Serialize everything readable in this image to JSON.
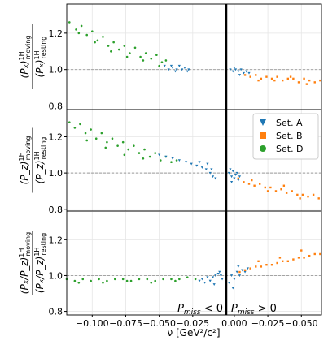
{
  "chart_data": {
    "type": "scatter",
    "sets": [
      {
        "name": "Set. A",
        "color": "#1f77b4",
        "marker": "triangle"
      },
      {
        "name": "Set. B",
        "color": "#ff7f0e",
        "marker": "square"
      },
      {
        "name": "Set. D",
        "color": "#2ca02c",
        "marker": "circle"
      }
    ],
    "legend": "upper right",
    "grid": true,
    "xlabel": "ν [GeV²/c²]",
    "xlim_left": [
      -0.119,
      0.0
    ],
    "xlim_right": [
      0.006,
      -0.065
    ],
    "xticks_left": [
      {
        "value": -0.1,
        "label": "−0.100"
      },
      {
        "value": -0.075,
        "label": "−0.075"
      },
      {
        "value": -0.05,
        "label": "−0.050"
      },
      {
        "value": -0.025,
        "label": "−0.025"
      }
    ],
    "xticks_right": [
      {
        "value": 0,
        "label": "0.000"
      },
      {
        "value": -0.025,
        "label": "−0.025"
      },
      {
        "value": -0.05,
        "label": "−0.050"
      }
    ],
    "annotations": [
      {
        "symbol": "P",
        "sub": "miss",
        "relation": " < 0"
      },
      {
        "symbol": "P",
        "sub": "miss",
        "relation": " > 0"
      }
    ],
    "panels": [
      {
        "ylabel": {
          "num": {
            "main": "(Pₓ)",
            "sup": "1H",
            "sub": "moving"
          },
          "den": {
            "main": "(Pₓ)",
            "sup": "1H",
            "sub": "resting"
          }
        },
        "ylim": [
          0.78,
          1.36
        ],
        "yticks": [
          0.8,
          {
            "value": 1,
            "label": "1.0"
          },
          1.2
        ],
        "refline": 1,
        "series": [
          {
            "set": 2,
            "side": "left",
            "x": [
              -0.117,
              -0.112,
              -0.108,
              -0.104,
              -0.1,
              -0.096,
              -0.092,
              -0.088,
              -0.084,
              -0.08,
              -0.076,
              -0.072,
              -0.068,
              -0.064,
              -0.06,
              -0.056,
              -0.052,
              -0.048,
              -0.045,
              -0.11,
              -0.098,
              -0.086,
              -0.074,
              -0.062,
              -0.05
            ],
            "y": [
              1.26,
              1.22,
              1.24,
              1.19,
              1.21,
              1.16,
              1.18,
              1.13,
              1.15,
              1.11,
              1.13,
              1.09,
              1.12,
              1.07,
              1.09,
              1.06,
              1.08,
              1.04,
              1.05,
              1.2,
              1.15,
              1.1,
              1.07,
              1.05,
              1.02
            ]
          },
          {
            "set": 0,
            "side": "left",
            "x": [
              -0.046,
              -0.043,
              -0.04,
              -0.037,
              -0.035,
              -0.033,
              -0.031,
              -0.029,
              -0.028,
              -0.041,
              -0.038
            ],
            "y": [
              1.02,
              1.0,
              1.01,
              1.0,
              1.02,
              1.0,
              1.01,
              0.99,
              1.0,
              1.02,
              0.99
            ]
          },
          {
            "set": 0,
            "side": "right",
            "x": [
              0.003,
              0.001,
              -0.001,
              -0.003,
              -0.005,
              -0.007,
              -0.009,
              -0.011,
              0.0,
              -0.004
            ],
            "y": [
              1.0,
              0.99,
              1.0,
              0.99,
              1.0,
              0.98,
              0.99,
              0.98,
              1.01,
              0.97
            ]
          },
          {
            "set": 1,
            "side": "right",
            "x": [
              -0.008,
              -0.012,
              -0.016,
              -0.02,
              -0.024,
              -0.028,
              -0.032,
              -0.036,
              -0.04,
              -0.044,
              -0.048,
              -0.052,
              -0.056,
              -0.06,
              -0.064,
              -0.018,
              -0.03,
              -0.042,
              -0.054
            ],
            "y": [
              0.97,
              0.96,
              0.97,
              0.95,
              0.96,
              0.95,
              0.96,
              0.94,
              0.95,
              0.95,
              0.93,
              0.95,
              0.94,
              0.93,
              0.94,
              0.94,
              0.94,
              0.96,
              0.92
            ]
          }
        ]
      },
      {
        "ylabel": {
          "num": {
            "main": "(P_z)",
            "sup": "1H",
            "sub": "moving"
          },
          "den": {
            "main": "(P_z)",
            "sup": "1H",
            "sub": "resting"
          }
        },
        "ylim": [
          0.79,
          1.35
        ],
        "yticks": [
          0.8,
          {
            "value": 1,
            "label": "1.0"
          },
          1.2
        ],
        "refline": 1,
        "series": [
          {
            "set": 2,
            "side": "left",
            "x": [
              -0.117,
              -0.113,
              -0.109,
              -0.105,
              -0.101,
              -0.097,
              -0.093,
              -0.089,
              -0.085,
              -0.081,
              -0.077,
              -0.073,
              -0.069,
              -0.065,
              -0.061,
              -0.057,
              -0.053,
              -0.049,
              -0.045,
              -0.041,
              -0.037,
              -0.104,
              -0.09,
              -0.076,
              -0.062
            ],
            "y": [
              1.28,
              1.25,
              1.27,
              1.22,
              1.24,
              1.19,
              1.22,
              1.17,
              1.19,
              1.15,
              1.17,
              1.13,
              1.15,
              1.11,
              1.13,
              1.09,
              1.11,
              1.07,
              1.09,
              1.06,
              1.07,
              1.18,
              1.14,
              1.1,
              1.08
            ]
          },
          {
            "set": 0,
            "side": "left",
            "x": [
              -0.05,
              -0.045,
              -0.04,
              -0.035,
              -0.03,
              -0.026,
              -0.022,
              -0.018,
              -0.015,
              -0.012,
              -0.01,
              -0.008,
              -0.02,
              -0.014,
              -0.011
            ],
            "y": [
              1.1,
              1.09,
              1.08,
              1.07,
              1.06,
              1.05,
              1.04,
              1.03,
              1.02,
              1.0,
              0.98,
              0.97,
              1.06,
              1.05,
              1.02
            ]
          },
          {
            "set": 0,
            "side": "right",
            "x": [
              0.004,
              0.003,
              0.002,
              0.001,
              0.0,
              -0.001,
              -0.002,
              -0.003,
              -0.004,
              0.002
            ],
            "y": [
              1.0,
              1.02,
              0.98,
              1.01,
              0.97,
              0.99,
              1.0,
              0.96,
              0.98,
              0.95
            ]
          },
          {
            "set": 1,
            "side": "right",
            "x": [
              -0.003,
              -0.007,
              -0.011,
              -0.015,
              -0.019,
              -0.023,
              -0.027,
              -0.031,
              -0.035,
              -0.039,
              -0.043,
              -0.047,
              -0.051,
              -0.055,
              -0.059,
              -0.063,
              -0.013,
              -0.025,
              -0.037,
              -0.049
            ],
            "y": [
              0.97,
              0.95,
              0.94,
              0.93,
              0.94,
              0.92,
              0.92,
              0.9,
              0.91,
              0.89,
              0.9,
              0.88,
              0.88,
              0.87,
              0.88,
              0.86,
              0.96,
              0.9,
              0.93,
              0.86
            ]
          }
        ]
      },
      {
        "ylabel": {
          "num": {
            "main": "(Pₓ/P_z)",
            "sup": "1H",
            "sub": "moving"
          },
          "den": {
            "main": "(Pₓ/P_z)",
            "sup": "1H",
            "sub": "resting"
          }
        },
        "ylim": [
          0.78,
          1.36
        ],
        "yticks": [
          0.8,
          {
            "value": 1,
            "label": "1.0"
          },
          1.2
        ],
        "refline": 1,
        "series": [
          {
            "set": 2,
            "side": "left",
            "x": [
              -0.119,
              -0.113,
              -0.107,
              -0.101,
              -0.095,
              -0.089,
              -0.083,
              -0.077,
              -0.071,
              -0.065,
              -0.059,
              -0.053,
              -0.047,
              -0.041,
              -0.035,
              -0.029,
              -0.023,
              -0.11,
              -0.092,
              -0.074,
              -0.056,
              -0.038
            ],
            "y": [
              0.98,
              0.97,
              0.98,
              0.97,
              0.98,
              0.97,
              0.98,
              0.98,
              0.97,
              0.98,
              0.98,
              0.97,
              0.98,
              0.98,
              0.98,
              0.99,
              0.98,
              0.96,
              0.96,
              0.97,
              0.96,
              0.97
            ]
          },
          {
            "set": 0,
            "side": "left",
            "x": [
              -0.02,
              -0.018,
              -0.016,
              -0.014,
              -0.012,
              -0.01,
              -0.008,
              -0.006,
              -0.004,
              -0.003,
              -0.009,
              -0.005
            ],
            "y": [
              0.97,
              0.98,
              0.96,
              0.99,
              0.97,
              0.99,
              1.0,
              1.01,
              1.0,
              0.98,
              0.95,
              1.02
            ]
          },
          {
            "set": 0,
            "side": "right",
            "x": [
              0.004,
              0.002,
              0.0,
              -0.002,
              -0.004,
              -0.006,
              -0.008,
              -0.01,
              0.001,
              -0.003
            ],
            "y": [
              0.96,
              1.0,
              0.98,
              1.02,
              1.0,
              1.03,
              1.02,
              1.04,
              0.93,
              1.05
            ]
          },
          {
            "set": 1,
            "side": "right",
            "x": [
              -0.004,
              -0.008,
              -0.012,
              -0.016,
              -0.02,
              -0.024,
              -0.028,
              -0.032,
              -0.036,
              -0.04,
              -0.044,
              -0.048,
              -0.052,
              -0.056,
              -0.06,
              -0.064,
              -0.018,
              -0.034,
              -0.05
            ],
            "y": [
              1.02,
              1.03,
              1.04,
              1.05,
              1.05,
              1.06,
              1.06,
              1.07,
              1.08,
              1.08,
              1.09,
              1.1,
              1.1,
              1.11,
              1.12,
              1.12,
              1.08,
              1.1,
              1.14
            ]
          }
        ]
      }
    ]
  }
}
